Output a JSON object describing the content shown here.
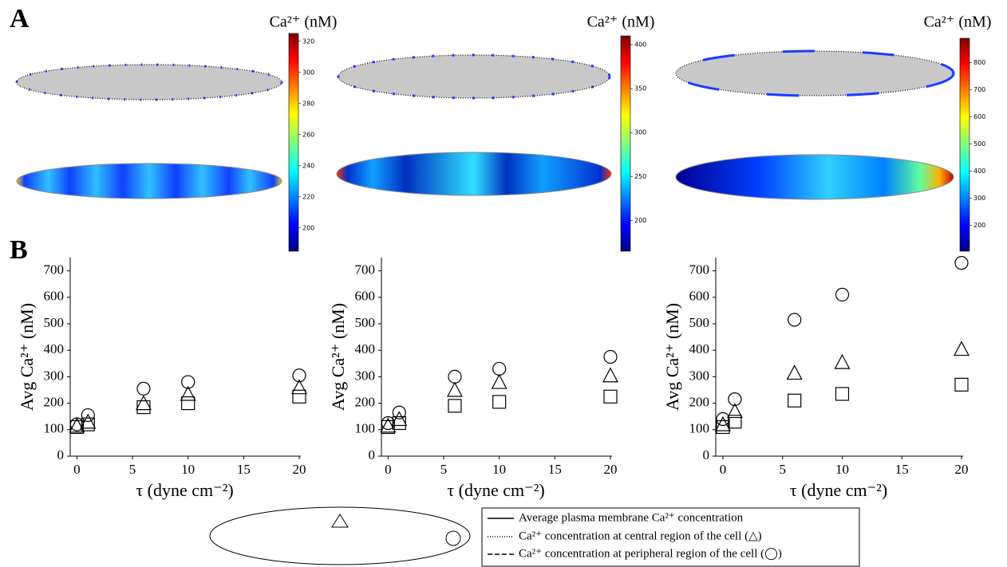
{
  "panel_labels": [
    "A",
    "B"
  ],
  "colorbars": [
    {
      "title": "Ca²⁺ (nM)",
      "lim": [
        185,
        325
      ],
      "ticks": [
        200,
        220,
        240,
        260,
        280,
        300,
        320
      ]
    },
    {
      "title": "Ca²⁺ (nM)",
      "lim": [
        165,
        410
      ],
      "ticks": [
        200,
        250,
        300,
        350,
        400
      ]
    },
    {
      "title": "Ca²⁺ (nM)",
      "lim": [
        105,
        890
      ],
      "ticks": [
        200,
        300,
        400,
        500,
        600,
        700,
        800
      ]
    }
  ],
  "chart_data": [
    {
      "type": "scatter",
      "xlabel": "τ (dyne cm⁻²)",
      "ylabel": "Avg Ca²⁺ (nM)",
      "xlim": [
        -0.6,
        20
      ],
      "ylim": [
        0,
        750
      ],
      "xticks": [
        0,
        5,
        10,
        15,
        20
      ],
      "yticks": [
        0,
        100,
        200,
        300,
        400,
        500,
        600,
        700
      ],
      "x": [
        0,
        1,
        6,
        10,
        20
      ],
      "series": [
        {
          "marker": "square",
          "color": "#000000",
          "values": [
            110,
            120,
            185,
            200,
            225
          ]
        },
        {
          "marker": "triangle",
          "color": "#000000",
          "values": [
            115,
            130,
            200,
            235,
            260
          ]
        },
        {
          "marker": "circle",
          "color": "#000000",
          "values": [
            120,
            155,
            255,
            280,
            305
          ]
        }
      ]
    },
    {
      "type": "scatter",
      "xlabel": "τ (dyne cm⁻²)",
      "ylabel": "Avg Ca²⁺ (nM)",
      "xlim": [
        -0.6,
        20
      ],
      "ylim": [
        0,
        750
      ],
      "xticks": [
        0,
        5,
        10,
        15,
        20
      ],
      "yticks": [
        0,
        100,
        200,
        300,
        400,
        500,
        600,
        700
      ],
      "x": [
        0,
        1,
        6,
        10,
        20
      ],
      "series": [
        {
          "marker": "square",
          "color": "#000000",
          "values": [
            110,
            125,
            190,
            205,
            225
          ]
        },
        {
          "marker": "triangle",
          "color": "#000000",
          "values": [
            115,
            140,
            250,
            280,
            305
          ]
        },
        {
          "marker": "circle",
          "color": "#000000",
          "values": [
            125,
            165,
            300,
            330,
            375
          ]
        }
      ]
    },
    {
      "type": "scatter",
      "xlabel": "τ (dyne cm⁻²)",
      "ylabel": "Avg Ca²⁺ (nM)",
      "xlim": [
        -0.6,
        20
      ],
      "ylim": [
        0,
        750
      ],
      "xticks": [
        0,
        5,
        10,
        15,
        20
      ],
      "yticks": [
        0,
        100,
        200,
        300,
        400,
        500,
        600,
        700
      ],
      "x": [
        0,
        1,
        6,
        10,
        20
      ],
      "series": [
        {
          "marker": "square",
          "color": "#000000",
          "values": [
            110,
            130,
            210,
            235,
            270
          ]
        },
        {
          "marker": "triangle",
          "color": "#000000",
          "values": [
            120,
            170,
            315,
            355,
            405
          ]
        },
        {
          "marker": "circle",
          "color": "#000000",
          "values": [
            140,
            215,
            515,
            610,
            730
          ]
        }
      ]
    }
  ],
  "legend": [
    "Average plasma membrane Ca²⁺ concentration",
    "Ca²⁺ concentration at central region of the cell (△)",
    "Ca²⁺ concentration at peripheral region of the cell (◯)"
  ]
}
